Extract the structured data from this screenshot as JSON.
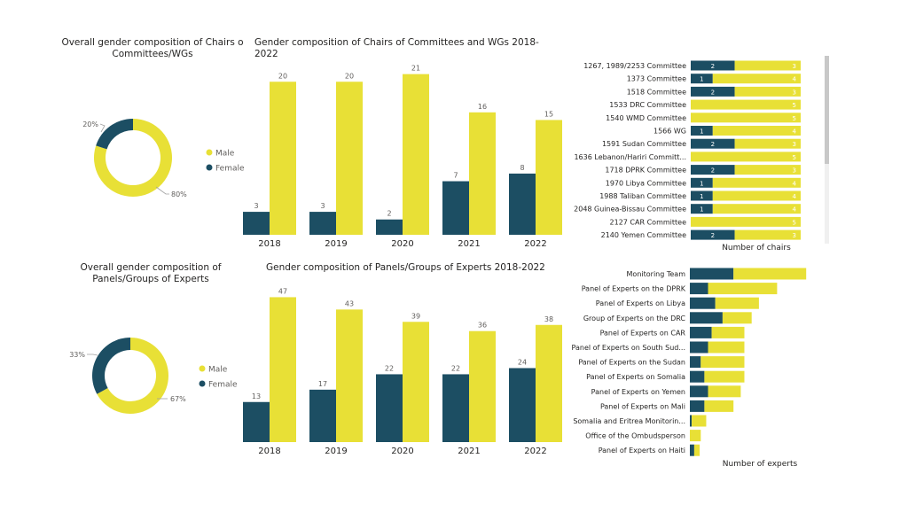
{
  "colors": {
    "male": "#E8E036",
    "female": "#1C4E63",
    "axis_text": "#252423",
    "label_gray": "#605E5C"
  },
  "titles": {
    "donut1": "Overall gender composition of Chairs o Committees/WGs",
    "bars1": "Gender composition of Chairs of Committees and WGs 2018-2022",
    "donut2": "Overall gender composition of Panels/Groups of Experts",
    "bars2": "Gender composition of Panels/Groups of Experts 2018-2022"
  },
  "chart_data": [
    {
      "type": "pie",
      "id": "donut1",
      "title": "Overall gender composition of Chairs o Committees/WGs",
      "series": [
        {
          "name": "Male",
          "value": 80,
          "label": "80%"
        },
        {
          "name": "Female",
          "value": 20,
          "label": "20%"
        }
      ],
      "legend": [
        "Male",
        "Female"
      ],
      "legend_position": "right"
    },
    {
      "type": "bar",
      "id": "bars1",
      "title": "Gender composition of Chairs of Committees and WGs 2018-2022",
      "categories": [
        "2018",
        "2019",
        "2020",
        "2021",
        "2022"
      ],
      "series": [
        {
          "name": "Female",
          "values": [
            3,
            3,
            2,
            7,
            8
          ]
        },
        {
          "name": "Male",
          "values": [
            20,
            20,
            21,
            16,
            15
          ]
        }
      ],
      "ylim": [
        0,
        22
      ]
    },
    {
      "type": "bar",
      "id": "hbars1",
      "orientation": "horizontal",
      "stacked": true,
      "xlabel": "Number of chairs",
      "categories": [
        "1267, 1989/2253 Committee",
        "1373 Committee",
        "1518 Committee",
        "1533 DRC Committee",
        "1540 WMD Committee",
        "1566 WG",
        "1591 Sudan Committee",
        "1636 Lebanon/Hariri Committ...",
        "1718 DPRK Committee",
        "1970 Libya Committee",
        "1988 Taliban Committee",
        "2048 Guinea-Bissau Committee",
        "2127 CAR Committee",
        "2140 Yemen Committee"
      ],
      "series": [
        {
          "name": "Female",
          "values": [
            2,
            1,
            2,
            0,
            0,
            1,
            2,
            0,
            2,
            1,
            1,
            1,
            0,
            2
          ]
        },
        {
          "name": "Male",
          "values": [
            3,
            4,
            3,
            5,
            5,
            4,
            3,
            5,
            3,
            4,
            4,
            4,
            5,
            3
          ]
        }
      ],
      "xlim": [
        0,
        5
      ]
    },
    {
      "type": "pie",
      "id": "donut2",
      "title": "Overall gender composition of Panels/Groups of Experts",
      "series": [
        {
          "name": "Male",
          "value": 67,
          "label": "67%"
        },
        {
          "name": "Female",
          "value": 33,
          "label": "33%"
        }
      ],
      "legend": [
        "Male",
        "Female"
      ],
      "legend_position": "right"
    },
    {
      "type": "bar",
      "id": "bars2",
      "title": "Gender composition of Panels/Groups of Experts 2018-2022",
      "categories": [
        "2018",
        "2019",
        "2020",
        "2021",
        "2022"
      ],
      "series": [
        {
          "name": "Female",
          "values": [
            13,
            17,
            22,
            22,
            24
          ]
        },
        {
          "name": "Male",
          "values": [
            47,
            43,
            39,
            36,
            38
          ]
        }
      ],
      "ylim": [
        0,
        50
      ]
    },
    {
      "type": "bar",
      "id": "hbars2",
      "orientation": "horizontal",
      "stacked": true,
      "xlabel": "Number of experts",
      "categories": [
        "Monitoring Team",
        "Panel of Experts on the DPRK",
        "Panel of Experts on Libya",
        "Group of Experts on the DRC",
        "Panel of Experts on CAR",
        "Panel of Experts on South Sud...",
        "Panel of Experts on the Sudan",
        "Panel of Experts on Somalia",
        "Panel of Experts on Yemen",
        "Panel of Experts on Mali",
        "Somalia and Eritrea Monitorin...",
        "Office of the Ombudsperson",
        "Panel of Experts on Haiti"
      ],
      "series": [
        {
          "name": "Female",
          "values": [
            12,
            5,
            7,
            9,
            6,
            5,
            3,
            4,
            5,
            4,
            0.5,
            0,
            1.2
          ]
        },
        {
          "name": "Male",
          "values": [
            20,
            19,
            12,
            8,
            9,
            10,
            12,
            11,
            9,
            8,
            4,
            3,
            1.5
          ]
        }
      ],
      "xlim": [
        0,
        32
      ]
    }
  ]
}
